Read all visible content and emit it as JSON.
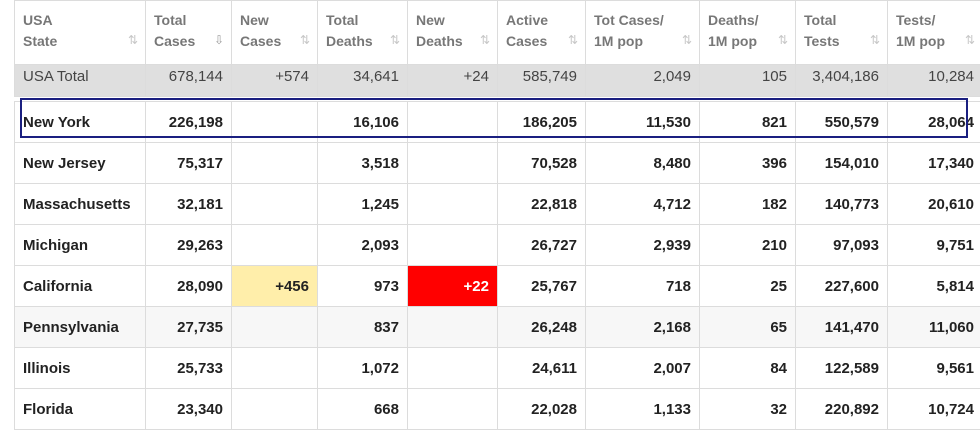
{
  "headers": [
    {
      "line1": "USA",
      "line2": "State",
      "sort": "⇅"
    },
    {
      "line1": "Total",
      "line2": "Cases",
      "sort": "⇩"
    },
    {
      "line1": "New",
      "line2": "Cases",
      "sort": "⇅"
    },
    {
      "line1": "Total",
      "line2": "Deaths",
      "sort": "⇅"
    },
    {
      "line1": "New",
      "line2": "Deaths",
      "sort": "⇅"
    },
    {
      "line1": "Active",
      "line2": "Cases",
      "sort": "⇅"
    },
    {
      "line1": "Tot Cases/",
      "line2": "1M pop",
      "sort": "⇅"
    },
    {
      "line1": "Deaths/",
      "line2": "1M pop",
      "sort": "⇅"
    },
    {
      "line1": "Total",
      "line2": "Tests",
      "sort": "⇅"
    },
    {
      "line1": "Tests/",
      "line2": "1M pop",
      "sort": "⇅"
    }
  ],
  "total": {
    "state": "USA Total",
    "total_cases": "678,144",
    "new_cases": "+574",
    "total_deaths": "34,641",
    "new_deaths": "+24",
    "active_cases": "585,749",
    "cases_per_1m": "2,049",
    "deaths_per_1m": "105",
    "total_tests": "3,404,186",
    "tests_per_1m": "10,284"
  },
  "rows": [
    {
      "state": "New York",
      "total_cases": "226,198",
      "new_cases": "",
      "total_deaths": "16,106",
      "new_deaths": "",
      "active_cases": "186,205",
      "cases_per_1m": "11,530",
      "deaths_per_1m": "821",
      "total_tests": "550,579",
      "tests_per_1m": "28,064"
    },
    {
      "state": "New Jersey",
      "total_cases": "75,317",
      "new_cases": "",
      "total_deaths": "3,518",
      "new_deaths": "",
      "active_cases": "70,528",
      "cases_per_1m": "8,480",
      "deaths_per_1m": "396",
      "total_tests": "154,010",
      "tests_per_1m": "17,340"
    },
    {
      "state": "Massachusetts",
      "total_cases": "32,181",
      "new_cases": "",
      "total_deaths": "1,245",
      "new_deaths": "",
      "active_cases": "22,818",
      "cases_per_1m": "4,712",
      "deaths_per_1m": "182",
      "total_tests": "140,773",
      "tests_per_1m": "20,610"
    },
    {
      "state": "Michigan",
      "total_cases": "29,263",
      "new_cases": "",
      "total_deaths": "2,093",
      "new_deaths": "",
      "active_cases": "26,727",
      "cases_per_1m": "2,939",
      "deaths_per_1m": "210",
      "total_tests": "97,093",
      "tests_per_1m": "9,751"
    },
    {
      "state": "California",
      "total_cases": "28,090",
      "new_cases": "+456",
      "total_deaths": "973",
      "new_deaths": "+22",
      "active_cases": "25,767",
      "cases_per_1m": "718",
      "deaths_per_1m": "25",
      "total_tests": "227,600",
      "tests_per_1m": "5,814"
    },
    {
      "state": "Pennsylvania",
      "total_cases": "27,735",
      "new_cases": "",
      "total_deaths": "837",
      "new_deaths": "",
      "active_cases": "26,248",
      "cases_per_1m": "2,168",
      "deaths_per_1m": "65",
      "total_tests": "141,470",
      "tests_per_1m": "11,060"
    },
    {
      "state": "Illinois",
      "total_cases": "25,733",
      "new_cases": "",
      "total_deaths": "1,072",
      "new_deaths": "",
      "active_cases": "24,611",
      "cases_per_1m": "2,007",
      "deaths_per_1m": "84",
      "total_tests": "122,589",
      "tests_per_1m": "9,561"
    },
    {
      "state": "Florida",
      "total_cases": "23,340",
      "new_cases": "",
      "total_deaths": "668",
      "new_deaths": "",
      "active_cases": "22,028",
      "cases_per_1m": "1,133",
      "deaths_per_1m": "32",
      "total_tests": "220,892",
      "tests_per_1m": "10,724"
    }
  ],
  "colors": {
    "new_cases_highlight": "#ffeeaa",
    "new_deaths_highlight": "#ff0000",
    "selected_row_border": "#1a1f80",
    "total_row_bg": "#dfdfdf"
  }
}
